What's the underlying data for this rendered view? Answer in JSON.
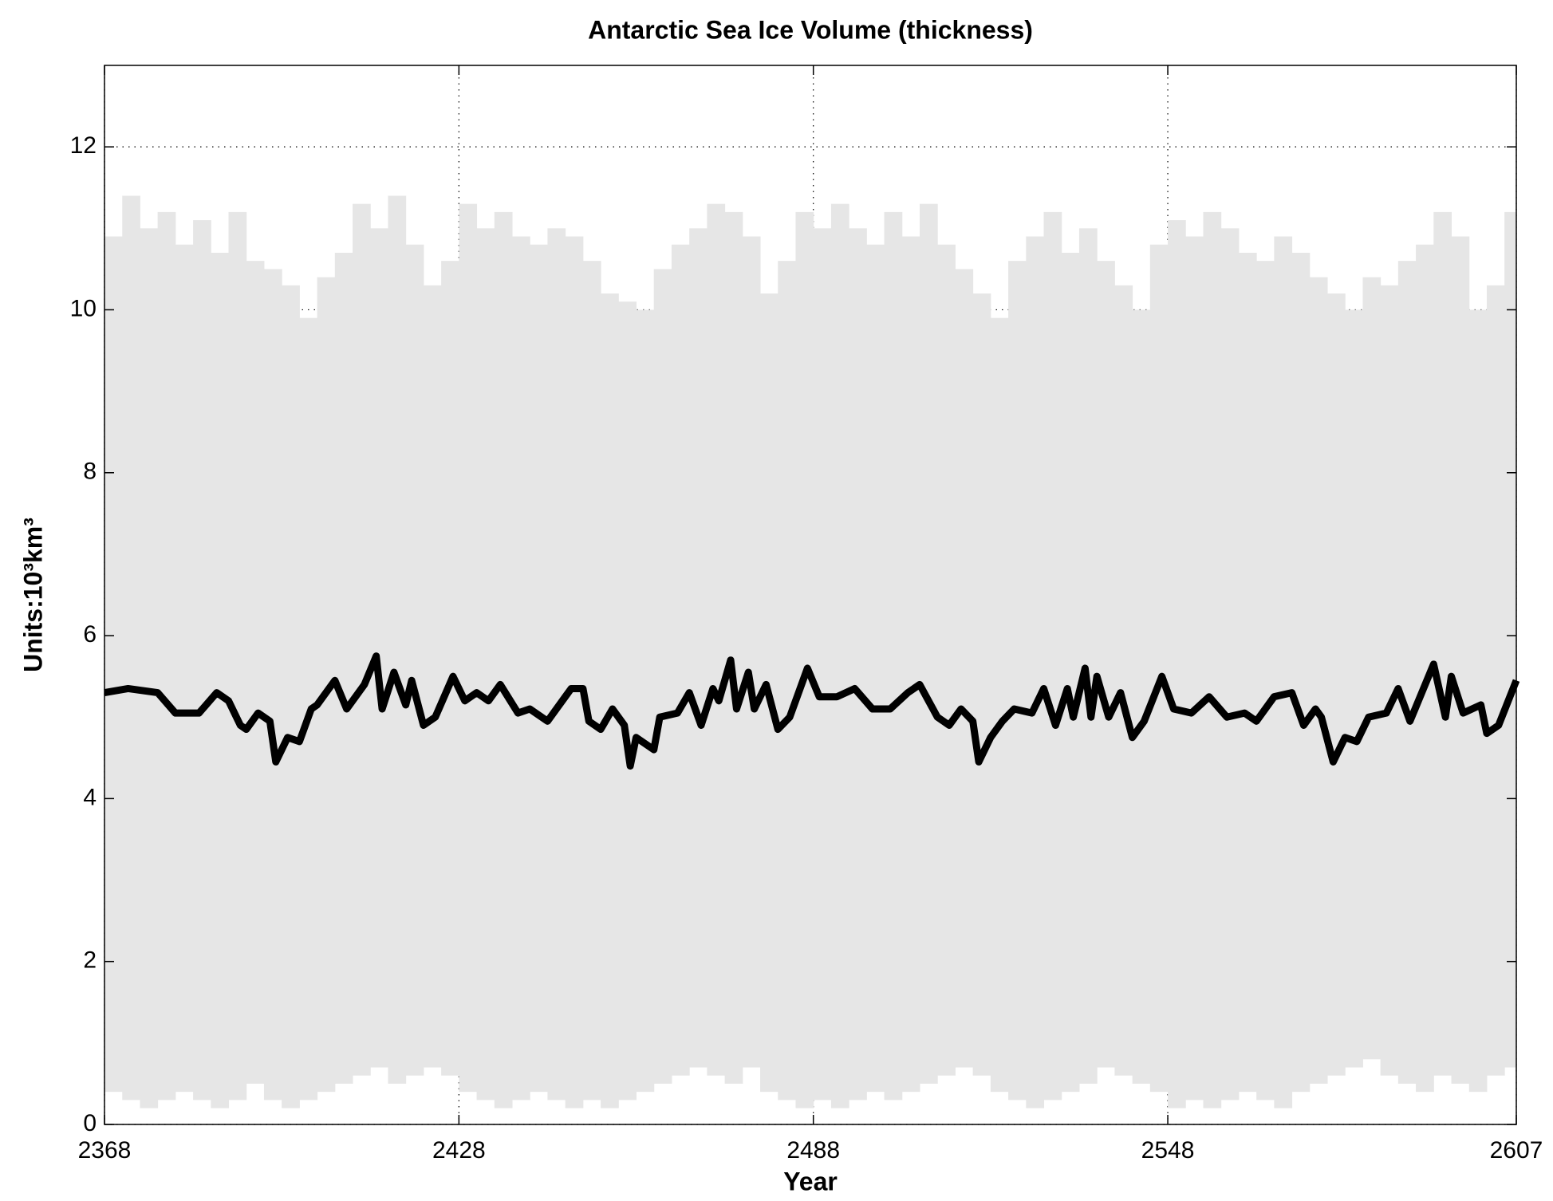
{
  "chart_data": {
    "type": "line",
    "title": "Antarctic Sea Ice Volume (thickness)",
    "xlabel": "Year",
    "ylabel": "Units:10³km³",
    "xlim": [
      2368,
      2607
    ],
    "ylim": [
      0,
      13
    ],
    "xticks": [
      2368,
      2428,
      2488,
      2548,
      2607
    ],
    "yticks": [
      0,
      2,
      4,
      6,
      8,
      10,
      12
    ],
    "grid": true,
    "band": {
      "color": "#e6e6e6",
      "x": [
        2368,
        2371,
        2374,
        2377,
        2380,
        2383,
        2386,
        2389,
        2392,
        2395,
        2398,
        2401,
        2404,
        2407,
        2410,
        2413,
        2416,
        2419,
        2422,
        2425,
        2428,
        2431,
        2434,
        2437,
        2440,
        2443,
        2446,
        2449,
        2452,
        2455,
        2458,
        2461,
        2464,
        2467,
        2470,
        2473,
        2476,
        2479,
        2482,
        2485,
        2488,
        2491,
        2494,
        2497,
        2500,
        2503,
        2506,
        2509,
        2512,
        2515,
        2518,
        2521,
        2524,
        2527,
        2530,
        2533,
        2536,
        2539,
        2542,
        2545,
        2548,
        2551,
        2554,
        2557,
        2560,
        2563,
        2566,
        2569,
        2572,
        2575,
        2578,
        2581,
        2584,
        2587,
        2590,
        2593,
        2596,
        2599,
        2602,
        2605
      ],
      "upper": [
        10.9,
        11.4,
        11.0,
        11.2,
        10.8,
        11.1,
        10.7,
        11.2,
        10.6,
        10.5,
        10.3,
        9.9,
        10.4,
        10.7,
        11.3,
        11.0,
        11.4,
        10.8,
        10.3,
        10.6,
        11.3,
        11.0,
        11.2,
        10.9,
        10.8,
        11.0,
        10.9,
        10.6,
        10.2,
        10.1,
        10.0,
        10.5,
        10.8,
        11.0,
        11.3,
        11.2,
        10.9,
        10.2,
        10.6,
        11.2,
        11.0,
        11.3,
        11.0,
        10.8,
        11.2,
        10.9,
        11.3,
        10.8,
        10.5,
        10.2,
        9.9,
        10.6,
        10.9,
        11.2,
        10.7,
        11.0,
        10.6,
        10.3,
        10.0,
        10.8,
        11.1,
        10.9,
        11.2,
        11.0,
        10.7,
        10.6,
        10.9,
        10.7,
        10.4,
        10.2,
        10.0,
        10.4,
        10.3,
        10.6,
        10.8,
        11.2,
        10.9,
        10.0,
        10.3,
        11.2
      ],
      "lower": [
        0.4,
        0.3,
        0.2,
        0.3,
        0.4,
        0.3,
        0.2,
        0.3,
        0.5,
        0.3,
        0.2,
        0.3,
        0.4,
        0.5,
        0.6,
        0.7,
        0.5,
        0.6,
        0.7,
        0.6,
        0.4,
        0.3,
        0.2,
        0.3,
        0.4,
        0.3,
        0.2,
        0.3,
        0.2,
        0.3,
        0.4,
        0.5,
        0.6,
        0.7,
        0.6,
        0.5,
        0.7,
        0.4,
        0.3,
        0.2,
        0.3,
        0.2,
        0.3,
        0.4,
        0.3,
        0.4,
        0.5,
        0.6,
        0.7,
        0.6,
        0.4,
        0.3,
        0.2,
        0.3,
        0.4,
        0.5,
        0.7,
        0.6,
        0.5,
        0.4,
        0.2,
        0.3,
        0.2,
        0.3,
        0.4,
        0.3,
        0.2,
        0.4,
        0.5,
        0.6,
        0.7,
        0.8,
        0.6,
        0.5,
        0.4,
        0.6,
        0.5,
        0.4,
        0.6,
        0.7
      ]
    },
    "x": [
      2368,
      2372,
      2377,
      2380,
      2384,
      2387,
      2389,
      2391,
      2392,
      2394,
      2396,
      2397,
      2399,
      2401,
      2403,
      2404,
      2407,
      2409,
      2412,
      2414,
      2415,
      2417,
      2419,
      2420,
      2422,
      2424,
      2427,
      2429,
      2431,
      2433,
      2435,
      2438,
      2440,
      2443,
      2446,
      2447,
      2449,
      2450,
      2452,
      2454,
      2456,
      2457,
      2458,
      2461,
      2462,
      2465,
      2467,
      2469,
      2471,
      2472,
      2474,
      2475,
      2477,
      2478,
      2480,
      2482,
      2484,
      2487,
      2489,
      2492,
      2495,
      2498,
      2501,
      2504,
      2506,
      2509,
      2511,
      2513,
      2515,
      2516,
      2518,
      2520,
      2522,
      2525,
      2527,
      2529,
      2531,
      2532,
      2534,
      2535,
      2536,
      2538,
      2540,
      2542,
      2544,
      2547,
      2549,
      2552,
      2555,
      2558,
      2561,
      2563,
      2566,
      2569,
      2571,
      2573,
      2574,
      2576,
      2578,
      2580,
      2582,
      2585,
      2587,
      2589,
      2591,
      2593,
      2595,
      2596,
      2598,
      2601,
      2602,
      2604,
      2607
    ],
    "series": [
      {
        "color": "#000000",
        "values": [
          5.3,
          5.35,
          5.3,
          5.05,
          5.05,
          5.3,
          5.2,
          4.9,
          4.85,
          5.05,
          4.95,
          4.45,
          4.75,
          4.7,
          5.1,
          5.15,
          5.45,
          5.1,
          5.4,
          5.75,
          5.1,
          5.55,
          5.15,
          5.45,
          4.9,
          5.0,
          5.5,
          5.2,
          5.3,
          5.2,
          5.4,
          5.05,
          5.1,
          4.95,
          5.25,
          5.35,
          5.35,
          4.95,
          4.85,
          5.1,
          4.9,
          4.4,
          4.75,
          4.6,
          5.0,
          5.05,
          5.3,
          4.9,
          5.35,
          5.2,
          5.7,
          5.1,
          5.55,
          5.1,
          5.4,
          4.85,
          5.0,
          5.6,
          5.25,
          5.25,
          5.35,
          5.1,
          5.1,
          5.3,
          5.4,
          5.0,
          4.9,
          5.1,
          4.95,
          4.45,
          4.75,
          4.95,
          5.1,
          5.05,
          5.35,
          4.9,
          5.35,
          5.0,
          5.6,
          5.0,
          5.5,
          5.0,
          5.3,
          4.75,
          4.95,
          5.5,
          5.1,
          5.05,
          5.25,
          5.0,
          5.05,
          4.95,
          5.25,
          5.3,
          4.9,
          5.1,
          5.0,
          4.45,
          4.75,
          4.7,
          5.0,
          5.05,
          5.35,
          4.95,
          5.3,
          5.65,
          5.0,
          5.5,
          5.05,
          5.15,
          4.8,
          4.9,
          5.45
        ]
      }
    ]
  }
}
